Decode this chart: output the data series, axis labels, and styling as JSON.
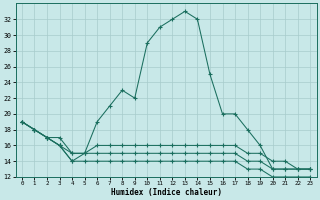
{
  "x": [
    0,
    1,
    2,
    3,
    4,
    5,
    6,
    7,
    8,
    9,
    10,
    11,
    12,
    13,
    14,
    15,
    16,
    17,
    18,
    19,
    20,
    21,
    22,
    23
  ],
  "main_line": [
    19,
    18,
    17,
    17,
    15,
    15,
    19,
    21,
    23,
    22,
    29,
    31,
    32,
    33,
    32,
    25,
    20,
    20,
    18,
    16,
    13,
    13,
    13,
    13
  ],
  "mid_line1": [
    19,
    18,
    17,
    16,
    15,
    15,
    16,
    16,
    16,
    16,
    16,
    16,
    16,
    16,
    16,
    16,
    16,
    16,
    15,
    15,
    14,
    14,
    13,
    13
  ],
  "mid_line2": [
    19,
    18,
    17,
    16,
    14,
    15,
    15,
    15,
    15,
    15,
    15,
    15,
    15,
    15,
    15,
    15,
    15,
    15,
    14,
    14,
    13,
    13,
    13,
    13
  ],
  "low_line": [
    19,
    18,
    17,
    16,
    14,
    14,
    14,
    14,
    14,
    14,
    14,
    14,
    14,
    14,
    14,
    14,
    14,
    14,
    13,
    13,
    12,
    12,
    12,
    12
  ],
  "bg_color": "#c8e8e8",
  "grid_color": "#a8cccc",
  "line_color": "#1a6e5e",
  "xlabel": "Humidex (Indice chaleur)",
  "ylim": [
    12,
    34
  ],
  "yticks": [
    12,
    14,
    16,
    18,
    20,
    22,
    24,
    26,
    28,
    30,
    32
  ],
  "xticks": [
    0,
    1,
    2,
    3,
    4,
    5,
    6,
    7,
    8,
    9,
    10,
    11,
    12,
    13,
    14,
    15,
    16,
    17,
    18,
    19,
    20,
    21,
    22,
    23
  ]
}
